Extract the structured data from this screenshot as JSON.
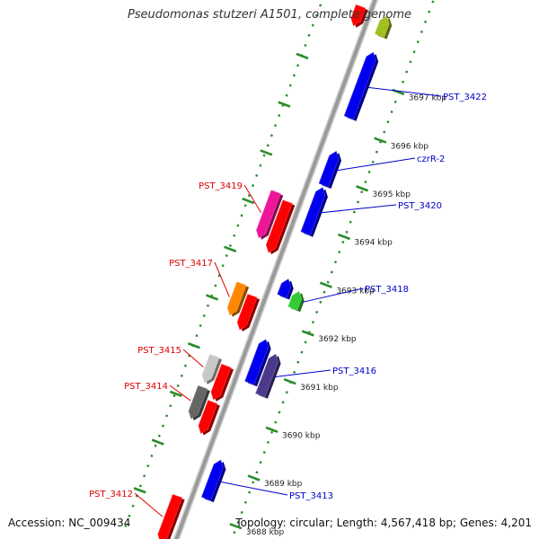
{
  "title": "Pseudomonas stutzeri A1501, complete genome",
  "accession_text": "Accession: NC_009434",
  "summary_text": "Topology: circular; Length: 4,567,418 bp; Genes: 4,201",
  "colors": {
    "backbone": "#9a9a9a",
    "ticks": "#2a8c2a",
    "forward_label": "#0000cc",
    "reverse_label": "#dd0000"
  },
  "kbp_ticks": [
    {
      "label": "3697 kbp",
      "kbp": 3697
    },
    {
      "label": "3696 kbp",
      "kbp": 3696
    },
    {
      "label": "3695 kbp",
      "kbp": 3695
    },
    {
      "label": "3694 kbp",
      "kbp": 3694
    },
    {
      "label": "3693 kbp",
      "kbp": 3693
    },
    {
      "label": "3692 kbp",
      "kbp": 3692
    },
    {
      "label": "3691 kbp",
      "kbp": 3691
    },
    {
      "label": "3690 kbp",
      "kbp": 3690
    },
    {
      "label": "3689 kbp",
      "kbp": 3689
    },
    {
      "label": "3688 kbp",
      "kbp": 3688
    }
  ],
  "genes": [
    {
      "label": "PST_3422",
      "start_kbp": 3696.2,
      "end_kbp": 3697.55,
      "strand": "+",
      "lane": 1,
      "color": "#0000ee"
    },
    {
      "label": "czrR-2",
      "start_kbp": 3694.8,
      "end_kbp": 3695.5,
      "strand": "+",
      "lane": 1,
      "color": "#0000ee"
    },
    {
      "label": "PST_3420",
      "start_kbp": 3693.8,
      "end_kbp": 3694.75,
      "strand": "+",
      "lane": 1,
      "color": "#0000ee"
    },
    {
      "label": "PST_3418",
      "start_kbp": 3692.35,
      "end_kbp": 3692.7,
      "strand": "+",
      "lane": 2,
      "color": "#33cc33"
    },
    {
      "label": "",
      "start_kbp": 3692.5,
      "end_kbp": 3692.85,
      "strand": "+",
      "lane": 1,
      "color": "#0000ee"
    },
    {
      "label": "PST_3416",
      "start_kbp": 3690.55,
      "end_kbp": 3691.4,
      "strand": "+",
      "lane": 2,
      "color": "#4b3a8c"
    },
    {
      "label": "",
      "start_kbp": 3690.7,
      "end_kbp": 3691.6,
      "strand": "+",
      "lane": 1,
      "color": "#0000ee"
    },
    {
      "label": "PST_3413",
      "start_kbp": 3688.3,
      "end_kbp": 3689.1,
      "strand": "+",
      "lane": 1,
      "color": "#0000ee"
    },
    {
      "label": "PST_3419",
      "start_kbp": 3693.4,
      "end_kbp": 3694.35,
      "strand": "-",
      "lane": 2,
      "color": "#ee1599"
    },
    {
      "label": "",
      "start_kbp": 3693.2,
      "end_kbp": 3694.25,
      "strand": "-",
      "lane": 1,
      "color": "#ff0000"
    },
    {
      "label": "PST_3417",
      "start_kbp": 3691.8,
      "end_kbp": 3692.45,
      "strand": "-",
      "lane": 2,
      "color": "#ff8800"
    },
    {
      "label": "",
      "start_kbp": 3691.6,
      "end_kbp": 3692.3,
      "strand": "-",
      "lane": 1,
      "color": "#ff0000"
    },
    {
      "label": "PST_3415",
      "start_kbp": 3690.4,
      "end_kbp": 3690.95,
      "strand": "-",
      "lane": 2,
      "color": "#c8c8c8"
    },
    {
      "label": "",
      "start_kbp": 3690.15,
      "end_kbp": 3690.85,
      "strand": "-",
      "lane": 1,
      "color": "#ff0000"
    },
    {
      "label": "PST_3414",
      "start_kbp": 3689.65,
      "end_kbp": 3690.3,
      "strand": "-",
      "lane": 2,
      "color": "#666666"
    },
    {
      "label": "",
      "start_kbp": 3689.45,
      "end_kbp": 3690.1,
      "strand": "-",
      "lane": 1,
      "color": "#ff0000"
    },
    {
      "label": "PST_3412",
      "start_kbp": 3687.2,
      "end_kbp": 3688.15,
      "strand": "-",
      "lane": 1,
      "color": "#ff0000"
    },
    {
      "label": "",
      "start_kbp": 3697.9,
      "end_kbp": 3698.3,
      "strand": "-",
      "lane": 1,
      "color": "#ff0000"
    },
    {
      "label": "",
      "start_kbp": 3697.9,
      "end_kbp": 3698.3,
      "strand": "+",
      "lane": 1,
      "color": "#a0c020"
    }
  ]
}
